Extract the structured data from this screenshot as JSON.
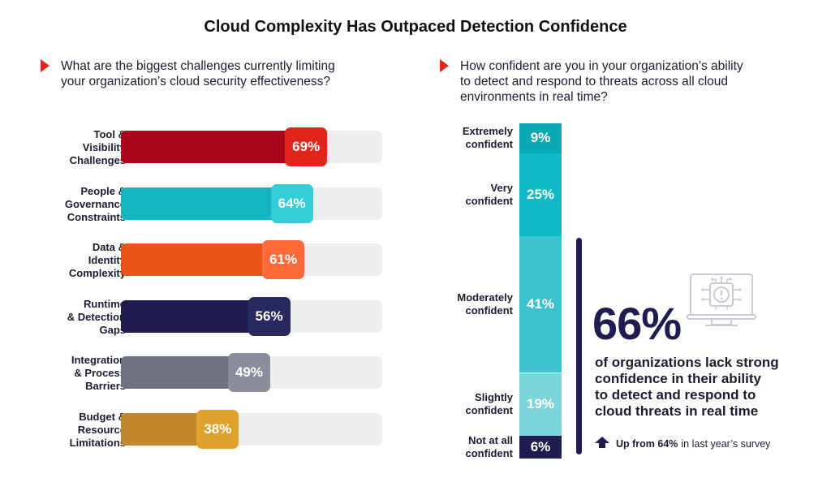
{
  "title": "Cloud Complexity Has Outpaced Detection Confidence",
  "left_question": {
    "lines": [
      "What are the biggest challenges currently limiting",
      "your organization’s cloud security effectiveness?"
    ]
  },
  "right_question": {
    "lines": [
      "How confident are you in your organization’s ability",
      "to detect and respond to threats across all cloud",
      "environments in real time?"
    ]
  },
  "chart_data": [
    {
      "type": "bar",
      "orientation": "horizontal",
      "categories": [
        [
          "Tool &",
          "Visibility",
          "Challenges"
        ],
        [
          "People &",
          "Governance",
          "Constraints"
        ],
        [
          "Data &",
          "Identity",
          "Complexity"
        ],
        [
          "Runtime",
          "& Detection",
          "Gaps"
        ],
        [
          "Integration",
          "& Process",
          "Barriers"
        ],
        [
          "Budget &",
          "Resource",
          "Limitations"
        ]
      ],
      "values": [
        69,
        64,
        61,
        56,
        49,
        38
      ],
      "value_labels": [
        "69%",
        "64%",
        "61%",
        "56%",
        "49%",
        "38%"
      ],
      "xlim": [
        0,
        100
      ],
      "colors": {
        "fills": [
          "#a8071a",
          "#13b5c1",
          "#e9541a",
          "#1f1d4f",
          "#6e7180",
          "#c4862a"
        ],
        "tags": [
          "#e1251b",
          "#35cdd8",
          "#ff6a3a",
          "#2a2860",
          "#8a8d9c",
          "#e0a22e"
        ],
        "track": "#eeeeee"
      }
    },
    {
      "type": "bar",
      "orientation": "stacked-column",
      "categories": [
        [
          "Extremely",
          "confident"
        ],
        [
          "Very",
          "confident"
        ],
        [
          "Moderately",
          "confident"
        ],
        [
          "Slightly",
          "confident"
        ],
        [
          "Not at all",
          "confident"
        ]
      ],
      "values": [
        9,
        25,
        41,
        19,
        6
      ],
      "value_labels": [
        "9%",
        "25%",
        "41%",
        "19%",
        "6%"
      ],
      "colors": [
        "#0aa8b3",
        "#10b9c4",
        "#3dc3cd",
        "#7dd6dc",
        "#1f1d4f"
      ]
    }
  ],
  "callout": {
    "stat": "66%",
    "lines": [
      "of organizations lack strong",
      "confidence in their ability",
      "to detect and respond to",
      "cloud threats in real time"
    ],
    "trend_bold": "Up from 64%",
    "trend_rest": "in last year’s survey",
    "icon": "monitor-alert-icon",
    "color": "#1f1d4f"
  }
}
